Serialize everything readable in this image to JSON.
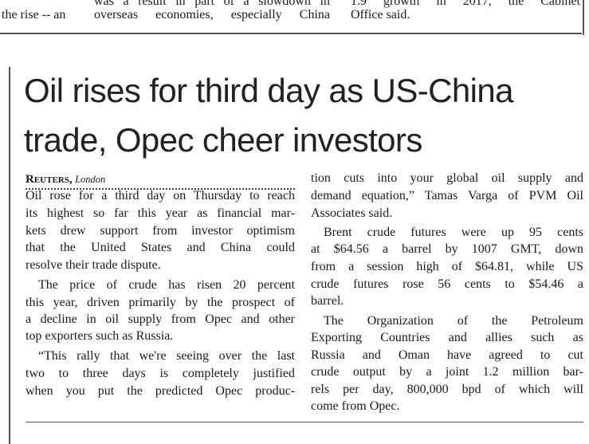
{
  "previous_article": {
    "col1": [
      "",
      "the rise -- an"
    ],
    "col2": [
      "was a result in part of a slowdown in",
      "overseas economies, especially China"
    ],
    "col3": [
      "1.9 growth in 2017, the Cabinet",
      "Office said."
    ]
  },
  "article": {
    "headline_lines": [
      "Oil rises for third day as US-China",
      "trade, Opec cheer investors"
    ],
    "byline_agency": "Reuters,",
    "byline_city": "London",
    "left_lines": [
      "Oil rose for a third day on Thursday to reach",
      "its highest so far this year as financial mar-",
      "kets drew support from investor optimism",
      "that the United States and China could",
      "resolve their trade dispute.",
      "The price of crude has risen 20 percent",
      "this year, driven primarily by the prospect of",
      "a decline in oil supply from Opec and other",
      "top exporters such as Russia.",
      "“This rally that we're seeing over the last",
      "two to three days is completely justified",
      "when you put the predicted Opec produc-"
    ],
    "right_lines": [
      "tion cuts into your global oil supply and",
      "demand equation,” Tamas Varga of PVM Oil",
      "Associates said.",
      "Brent crude futures were up 95 cents",
      "at $64.56 a barrel by 1007 GMT, down",
      "from a session high of $64.81, while US",
      "crude futures rose 56 cents to $54.46 a",
      "barrel.",
      "The Organization of the Petroleum",
      "Exporting Countries and allies such as",
      "Russia and Oman have agreed to cut",
      "crude output by a joint 1.2 million bar-",
      "rels per day, 800,000 bpd of which will",
      "come from Opec."
    ]
  }
}
